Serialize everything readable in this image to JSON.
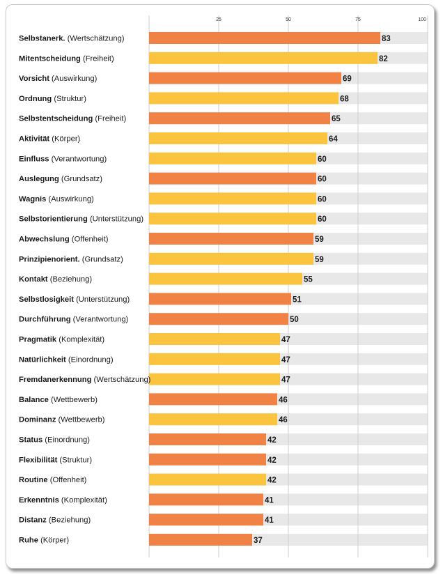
{
  "chart_data": {
    "type": "bar",
    "orientation": "horizontal",
    "xlim": [
      0,
      100
    ],
    "ticks": [
      "25",
      "50",
      "75",
      "100"
    ],
    "grid": true,
    "colors": {
      "orange": "#ef8244",
      "yellow": "#fac43f",
      "track": "#e8e8e8",
      "gridline": "#cfcfcf"
    },
    "rows": [
      {
        "bold": "Selbstanerk.",
        "rest": " (Wertschätzung)",
        "value": 83,
        "color": "orange"
      },
      {
        "bold": "Mitentscheidung",
        "rest": " (Freiheit)",
        "value": 82,
        "color": "yellow"
      },
      {
        "bold": "Vorsicht",
        "rest": " (Auswirkung)",
        "value": 69,
        "color": "orange"
      },
      {
        "bold": "Ordnung",
        "rest": " (Struktur)",
        "value": 68,
        "color": "yellow"
      },
      {
        "bold": "Selbstentscheidung",
        "rest": " (Freiheit)",
        "value": 65,
        "color": "orange"
      },
      {
        "bold": "Aktivität",
        "rest": " (Körper)",
        "value": 64,
        "color": "yellow"
      },
      {
        "bold": "Einfluss",
        "rest": " (Verantwortung)",
        "value": 60,
        "color": "yellow"
      },
      {
        "bold": "Auslegung",
        "rest": " (Grundsatz)",
        "value": 60,
        "color": "orange"
      },
      {
        "bold": "Wagnis",
        "rest": " (Auswirkung)",
        "value": 60,
        "color": "yellow"
      },
      {
        "bold": "Selbstorientierung",
        "rest": " (Unterstützung)",
        "value": 60,
        "color": "yellow"
      },
      {
        "bold": "Abwechslung",
        "rest": " (Offenheit)",
        "value": 59,
        "color": "orange"
      },
      {
        "bold": "Prinzipienorient.",
        "rest": " (Grundsatz)",
        "value": 59,
        "color": "yellow"
      },
      {
        "bold": "Kontakt",
        "rest": " (Beziehung)",
        "value": 55,
        "color": "yellow"
      },
      {
        "bold": "Selbstlosigkeit",
        "rest": " (Unterstützung)",
        "value": 51,
        "color": "orange"
      },
      {
        "bold": "Durchführung",
        "rest": " (Verantwortung)",
        "value": 50,
        "color": "orange"
      },
      {
        "bold": "Pragmatik",
        "rest": " (Komplexität)",
        "value": 47,
        "color": "yellow"
      },
      {
        "bold": "Natürlichkeit",
        "rest": " (Einordnung)",
        "value": 47,
        "color": "yellow"
      },
      {
        "bold": "Fremdanerkennung",
        "rest": " (Wertschätzung)",
        "value": 47,
        "color": "yellow"
      },
      {
        "bold": "Balance",
        "rest": " (Wettbewerb)",
        "value": 46,
        "color": "orange"
      },
      {
        "bold": "Dominanz",
        "rest": " (Wettbewerb)",
        "value": 46,
        "color": "yellow"
      },
      {
        "bold": "Status",
        "rest": " (Einordnung)",
        "value": 42,
        "color": "orange"
      },
      {
        "bold": "Flexibilität",
        "rest": " (Struktur)",
        "value": 42,
        "color": "orange"
      },
      {
        "bold": "Routine",
        "rest": " (Offenheit)",
        "value": 42,
        "color": "yellow"
      },
      {
        "bold": "Erkenntnis",
        "rest": " (Komplexität)",
        "value": 41,
        "color": "orange"
      },
      {
        "bold": "Distanz",
        "rest": " (Beziehung)",
        "value": 41,
        "color": "orange"
      },
      {
        "bold": "Ruhe",
        "rest": " (Körper)",
        "value": 37,
        "color": "orange"
      }
    ]
  }
}
